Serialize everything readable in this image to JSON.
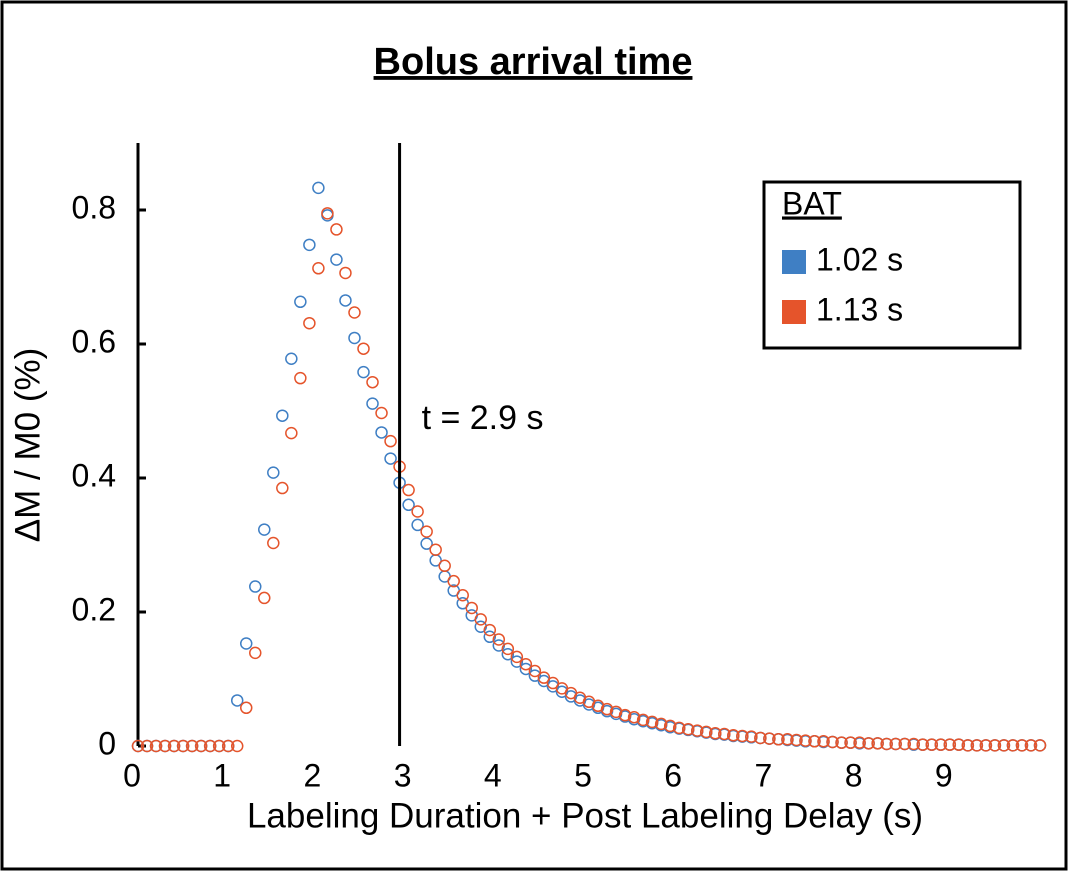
{
  "chart_data": {
    "type": "scatter",
    "title": "Bolus arrival time",
    "xlabel": "Labeling Duration + Post Labeling Delay (s)",
    "ylabel": "ΔM / M0 (%)",
    "xlim": [
      0,
      10
    ],
    "ylim": [
      0,
      0.9
    ],
    "xticks": [
      0,
      1,
      2,
      3,
      4,
      5,
      6,
      7,
      8,
      9
    ],
    "yticks": [
      0,
      0.2,
      0.4,
      0.6,
      0.8
    ],
    "legend_title": "BAT",
    "legend_position": "upper right",
    "vline": 2.9,
    "annotation": "t = 2.9 s",
    "x": [
      0,
      0.1,
      0.2,
      0.3,
      0.4,
      0.5,
      0.6,
      0.7,
      0.8,
      0.9,
      1,
      1.1,
      1.2,
      1.3,
      1.4,
      1.5,
      1.6,
      1.7,
      1.8,
      1.9,
      2,
      2.1,
      2.2,
      2.3,
      2.4,
      2.5,
      2.6,
      2.7,
      2.8,
      2.9,
      3,
      3.1,
      3.2,
      3.3,
      3.4,
      3.5,
      3.6,
      3.7,
      3.8,
      3.9,
      4,
      4.1,
      4.2,
      4.3,
      4.4,
      4.5,
      4.6,
      4.7,
      4.8,
      4.9,
      5,
      5.1,
      5.2,
      5.3,
      5.4,
      5.5,
      5.6,
      5.7,
      5.8,
      5.9,
      6,
      6.1,
      6.2,
      6.3,
      6.4,
      6.5,
      6.6,
      6.7,
      6.8,
      6.9,
      7,
      7.1,
      7.2,
      7.3,
      7.4,
      7.5,
      7.6,
      7.7,
      7.8,
      7.9,
      8,
      8.1,
      8.2,
      8.3,
      8.4,
      8.5,
      8.6,
      8.7,
      8.8,
      8.9,
      9,
      9.1,
      9.2,
      9.3,
      9.4,
      9.5,
      9.6,
      9.7,
      9.8,
      9.9,
      10
    ],
    "series": [
      {
        "name": "1.02 s",
        "color": "#3f7fc4",
        "values": [
          0,
          0,
          0,
          0,
          0,
          0,
          0,
          0,
          0,
          0,
          0,
          0.068,
          0.153,
          0.238,
          0.323,
          0.408,
          0.493,
          0.578,
          0.663,
          0.748,
          0.833,
          0.792,
          0.726,
          0.665,
          0.609,
          0.558,
          0.511,
          0.468,
          0.429,
          0.393,
          0.36,
          0.33,
          0.302,
          0.277,
          0.253,
          0.232,
          0.213,
          0.195,
          0.178,
          0.163,
          0.15,
          0.137,
          0.126,
          0.115,
          0.105,
          0.097,
          0.089,
          0.081,
          0.074,
          0.068,
          0.062,
          0.057,
          0.052,
          0.048,
          0.044,
          0.04,
          0.037,
          0.034,
          0.031,
          0.028,
          0.026,
          0.024,
          0.022,
          0.02,
          0.018,
          0.017,
          0.015,
          0.014,
          0.013,
          0.012,
          0.011,
          0.01,
          0.009,
          0.008,
          0.007,
          0.007,
          0.006,
          0.006,
          0.005,
          0.005,
          0.004,
          0.004,
          0.004,
          0.003,
          0.003,
          0.003,
          0.002,
          0.002,
          0.002,
          0.002,
          0.002,
          0.002,
          0.001,
          0.001,
          0.001,
          0.001,
          0.001,
          0.001,
          0.001,
          0.001,
          0.001
        ]
      },
      {
        "name": "1.13 s",
        "color": "#e5542b",
        "values": [
          0,
          0,
          0,
          0,
          0,
          0,
          0,
          0,
          0,
          0,
          0,
          0,
          0.057,
          0.139,
          0.221,
          0.303,
          0.385,
          0.467,
          0.549,
          0.631,
          0.713,
          0.795,
          0.771,
          0.706,
          0.647,
          0.593,
          0.543,
          0.497,
          0.455,
          0.417,
          0.382,
          0.35,
          0.32,
          0.293,
          0.269,
          0.246,
          0.225,
          0.206,
          0.189,
          0.173,
          0.159,
          0.145,
          0.133,
          0.122,
          0.112,
          0.102,
          0.094,
          0.086,
          0.079,
          0.072,
          0.066,
          0.06,
          0.055,
          0.051,
          0.046,
          0.043,
          0.039,
          0.036,
          0.033,
          0.03,
          0.027,
          0.025,
          0.023,
          0.021,
          0.019,
          0.018,
          0.016,
          0.015,
          0.014,
          0.012,
          0.011,
          0.01,
          0.01,
          0.009,
          0.008,
          0.007,
          0.007,
          0.006,
          0.005,
          0.005,
          0.005,
          0.004,
          0.004,
          0.003,
          0.003,
          0.003,
          0.003,
          0.002,
          0.002,
          0.002,
          0.002,
          0.002,
          0.001,
          0.001,
          0.001,
          0.001,
          0.001,
          0.001,
          0.001,
          0.001,
          0.001
        ]
      }
    ]
  }
}
